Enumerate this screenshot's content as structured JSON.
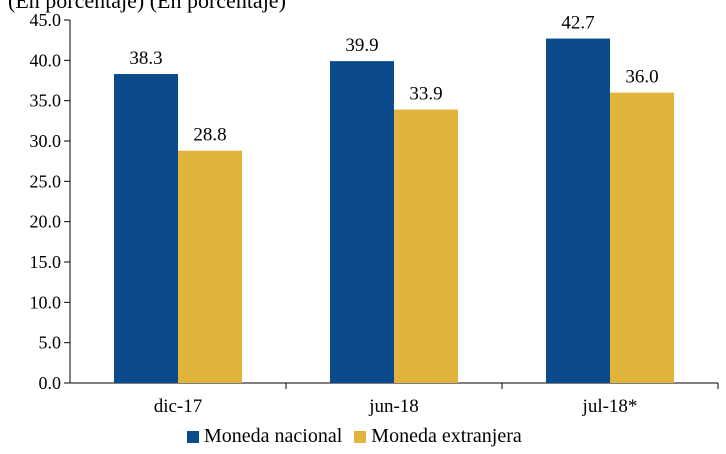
{
  "chart_data": {
    "type": "bar",
    "title": "",
    "subtitle_clipped": "(En porcentaje) (En porcentaje)",
    "xlabel": "",
    "ylabel": "",
    "categories": [
      "dic-17",
      "jun-18",
      "jul-18*"
    ],
    "series": [
      {
        "name": "Moneda nacional",
        "color": "#0B4A8B",
        "values": [
          38.3,
          39.9,
          42.7
        ],
        "labels": [
          "38.3",
          "39.9",
          "42.7"
        ]
      },
      {
        "name": "Moneda extranjera",
        "color": "#E1B53D",
        "values": [
          28.8,
          33.9,
          36.0
        ],
        "labels": [
          "28.8",
          "33.9",
          "36.0"
        ]
      }
    ],
    "ylim": [
      0,
      45
    ],
    "yticks": [
      0,
      5,
      10,
      15,
      20,
      25,
      30,
      35,
      40,
      45
    ],
    "ytick_labels": [
      "0.0",
      "5.0",
      "10.0",
      "15.0",
      "20.0",
      "25.0",
      "30.0",
      "35.0",
      "40.0",
      "45.0"
    ],
    "grid": false,
    "legend_placement": "bottom-center"
  }
}
